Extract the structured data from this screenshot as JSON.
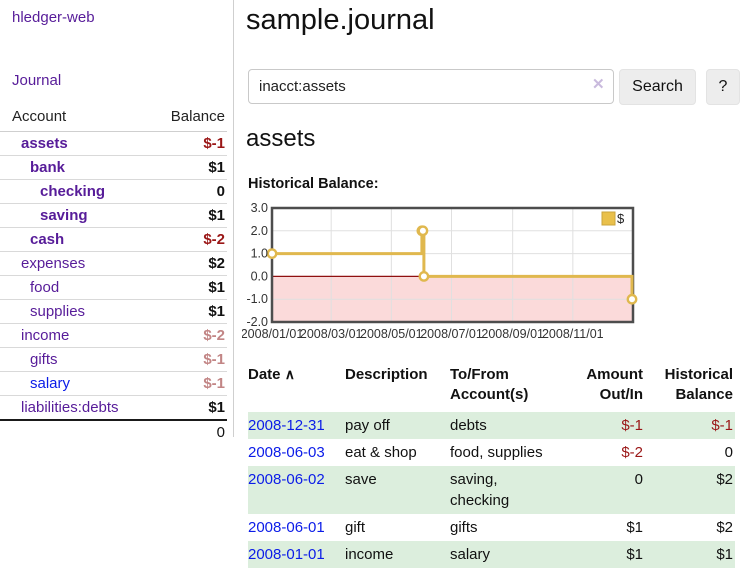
{
  "app": {
    "brand": "hledger-web",
    "nav_journal": "Journal"
  },
  "sidebar": {
    "columns": {
      "account": "Account",
      "balance": "Balance"
    },
    "rows": [
      {
        "account": "assets",
        "balance": "$-1",
        "level": 1,
        "bold": true,
        "balance_state": "negative"
      },
      {
        "account": "bank",
        "balance": "$1",
        "level": 2,
        "bold": true,
        "balance_state": "normal"
      },
      {
        "account": "checking",
        "balance": "0",
        "level": 3,
        "bold": true,
        "balance_state": "normal"
      },
      {
        "account": "saving",
        "balance": "$1",
        "level": 3,
        "bold": true,
        "balance_state": "normal"
      },
      {
        "account": "cash",
        "balance": "$-2",
        "level": 2,
        "bold": true,
        "balance_state": "negative"
      },
      {
        "account": "expenses",
        "balance": "$2",
        "level": 1,
        "bold": false,
        "balance_state": "normal"
      },
      {
        "account": "food",
        "balance": "$1",
        "level": 2,
        "bold": false,
        "balance_state": "normal"
      },
      {
        "account": "supplies",
        "balance": "$1",
        "level": 2,
        "bold": false,
        "balance_state": "normal"
      },
      {
        "account": "income",
        "balance": "$-2",
        "level": 1,
        "bold": false,
        "balance_state": "negative-faded"
      },
      {
        "account": "gifts",
        "balance": "$-1",
        "level": 2,
        "bold": false,
        "balance_state": "negative-faded"
      },
      {
        "account": "salary",
        "balance": "$-1",
        "level": 2,
        "bold": false,
        "balance_state": "negative-faded",
        "blue": true
      },
      {
        "account": "liabilities:debts",
        "balance": "$1",
        "level": 1,
        "bold": false,
        "balance_state": "normal"
      }
    ],
    "total": "0"
  },
  "header": {
    "title": "sample.journal"
  },
  "search": {
    "value": "inacct:assets",
    "clear_icon": "✕",
    "search_label": "Search",
    "help_label": "?"
  },
  "account_page": {
    "heading": "assets",
    "chart_title": "Historical Balance:"
  },
  "chart_data": {
    "type": "line",
    "step": "after",
    "title": "Historical Balance:",
    "series": [
      {
        "name": "$",
        "dates": [
          "2008-01-01",
          "2008-06-01",
          "2008-06-02",
          "2008-06-03",
          "2008-12-31"
        ],
        "days": [
          0,
          152,
          153,
          154,
          365
        ],
        "values": [
          1,
          2,
          2,
          0,
          -1
        ]
      }
    ],
    "ylim": [
      -2,
      3
    ],
    "yticks": [
      "3.0",
      "2.0",
      "1.0",
      "0.0",
      "-1.0",
      "-2.0"
    ],
    "ytick_values": [
      3,
      2,
      1,
      0,
      -1,
      -2
    ],
    "xticks": [
      "2008/01/01",
      "2008/03/01",
      "2008/05/01",
      "2008/07/01",
      "2008/09/01",
      "2008/11/01"
    ],
    "xtick_days": [
      0,
      60,
      121,
      182,
      244,
      305
    ],
    "x_range_days": [
      0,
      366
    ],
    "grid": true,
    "legend_position": "top-right",
    "colors": {
      "line": "#e0b84e",
      "marker_fill": "#ffffff",
      "negative_area": "#fbdada",
      "zero_line": "#8f1010",
      "grid": "#e0e0e0",
      "border": "#4d4d4d",
      "legend_swatch": "#e9c04b",
      "legend_swatch_border": "#caa53d"
    }
  },
  "register": {
    "columns": [
      {
        "label": "Date",
        "sort": "asc"
      },
      {
        "label": "Description"
      },
      {
        "label": "To/From\nAccount(s)"
      },
      {
        "label": "Amount\nOut/In",
        "align": "right"
      },
      {
        "label": "Historical\nBalance",
        "align": "right"
      }
    ],
    "sort_caret": "∧",
    "rows": [
      {
        "date": "2008-12-31",
        "description": "pay off",
        "accounts": "debts",
        "amount": "$-1",
        "balance": "$-1",
        "striped": true
      },
      {
        "date": "2008-06-03",
        "description": "eat & shop",
        "accounts": "food, supplies",
        "amount": "$-2",
        "balance": "0",
        "striped": false
      },
      {
        "date": "2008-06-02",
        "description": "save",
        "accounts": "saving,\nchecking",
        "amount": "0",
        "balance": "$2",
        "striped": true
      },
      {
        "date": "2008-06-01",
        "description": "gift",
        "accounts": "gifts",
        "amount": "$1",
        "balance": "$2",
        "striped": false
      },
      {
        "date": "2008-01-01",
        "description": "income",
        "accounts": "salary",
        "amount": "$1",
        "balance": "$1",
        "striped": true
      }
    ]
  }
}
